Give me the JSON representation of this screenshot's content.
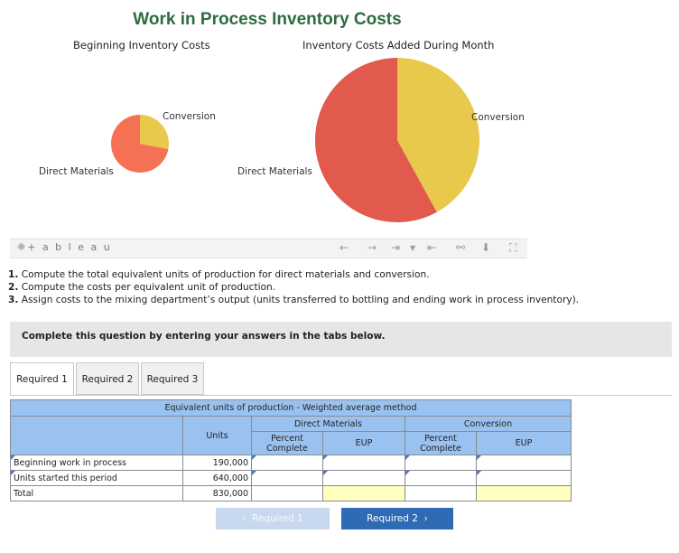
{
  "chart": {
    "title": "Work in Process Inventory Costs",
    "left_title": "Beginning Inventory Costs",
    "right_title": "Inventory Costs Added During Month",
    "left_label_conversion": "Conversion",
    "left_label_dm": "Direct Materials",
    "right_label_conversion": "Conversion",
    "right_label_dm": "Direct Materials",
    "colors": {
      "direct_materials_left": "#f47154",
      "conversion": "#e8c94c",
      "direct_materials_right": "#e25a4d"
    }
  },
  "chart_data": [
    {
      "type": "pie",
      "title": "Beginning Inventory Costs",
      "categories": [
        "Direct Materials",
        "Conversion"
      ],
      "values": [
        0.72,
        0.28
      ]
    },
    {
      "type": "pie",
      "title": "Inventory Costs Added During Month",
      "categories": [
        "Direct Materials",
        "Conversion"
      ],
      "values": [
        0.58,
        0.42
      ]
    }
  ],
  "tableau": {
    "logo": "+ a b l e a u",
    "icons": [
      "undo-icon",
      "redo-icon",
      "revert-icon",
      "dropdown-icon",
      "reset-icon",
      "share-icon",
      "download-icon",
      "fullscreen-icon"
    ]
  },
  "instructions": {
    "n1": "1.",
    "t1": " Compute the total equivalent units of production for direct materials and conversion.",
    "n2": "2.",
    "t2": " Compute the costs per equivalent unit of production.",
    "n3": "3.",
    "t3": " Assign costs to the mixing department’s output (units transferred to bottling and ending work in process inventory)."
  },
  "complete_text": "Complete this question by entering your answers in the tabs below.",
  "tabs": [
    "Required 1",
    "Required 2",
    "Required 3"
  ],
  "table": {
    "title": "Equivalent units of production - Weighted average method",
    "units_header": "Units",
    "dm_header": "Direct Materials",
    "conv_header": "Conversion",
    "percent_complete": "Percent Complete",
    "eup": "EUP",
    "rows": [
      {
        "label": "Beginning work in process",
        "units": "190,000"
      },
      {
        "label": "Units started this period",
        "units": "640,000"
      },
      {
        "label": "Total",
        "units": "830,000"
      }
    ]
  },
  "nav": {
    "prev": "Required 1",
    "next": "Required 2"
  }
}
